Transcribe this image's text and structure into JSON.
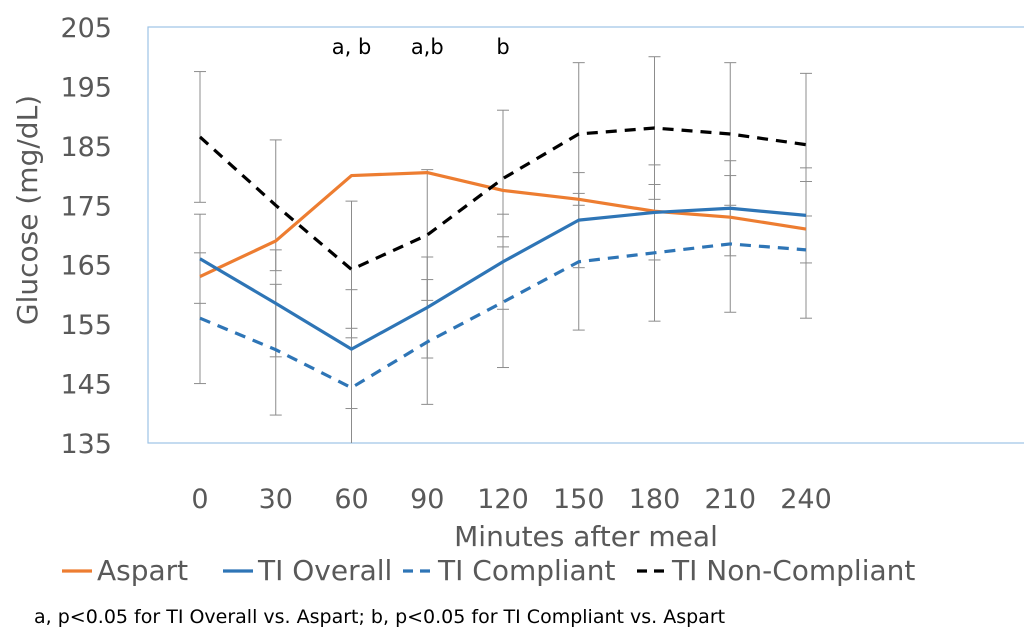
{
  "chart_data": {
    "type": "line",
    "xlabel": "Minutes after meal",
    "ylabel": "Glucose (mg/dL)",
    "x": [
      0,
      30,
      60,
      90,
      120,
      150,
      180,
      210,
      240
    ],
    "x_tick_labels": [
      "0",
      "30",
      "60",
      "90",
      "120",
      "150",
      "180",
      "210",
      "240"
    ],
    "ylim": [
      135,
      205
    ],
    "y_ticks": [
      135,
      145,
      155,
      165,
      175,
      185,
      195,
      205
    ],
    "y_tick_labels": [
      "135",
      "145",
      "155",
      "165",
      "175",
      "185",
      "195",
      "205"
    ],
    "grid": false,
    "legend_position": "bottom",
    "series": [
      {
        "name": "Aspart",
        "color": "#ED7D31",
        "dash": "solid",
        "values": [
          163,
          169,
          180,
          180.5,
          177.5,
          176,
          174,
          173,
          171
        ]
      },
      {
        "name": "TI Overall",
        "color": "#2E75B6",
        "dash": "solid",
        "values": [
          166,
          158.5,
          150.8,
          157.8,
          165.5,
          172.5,
          173.8,
          174.5,
          173.3
        ],
        "error": [
          7.5,
          9,
          10,
          8.5,
          8,
          8,
          8,
          8,
          8
        ]
      },
      {
        "name": "TI Compliant",
        "color": "#2E75B6",
        "dash": "dashed",
        "values": [
          156,
          150.7,
          144.3,
          152,
          158.7,
          165.5,
          167,
          168.5,
          167.5
        ],
        "error": [
          11,
          11,
          10,
          10.5,
          11,
          11.5,
          11.5,
          11.5,
          11.5
        ]
      },
      {
        "name": "TI Non-Compliant",
        "color": "#000000",
        "dash": "dashed",
        "values": [
          186.5,
          175,
          164.2,
          170,
          179.5,
          187,
          188,
          187,
          185.2
        ],
        "error": [
          11,
          11,
          11.5,
          11,
          11.5,
          12,
          12,
          12,
          12
        ]
      }
    ],
    "annotations": [
      {
        "x": 60,
        "text": "a, b"
      },
      {
        "x": 90,
        "text": "a,b"
      },
      {
        "x": 120,
        "text": "b"
      }
    ],
    "footnote": "a, p<0.05 for TI Overall vs. Aspart; b, p<0.05 for TI Compliant vs. Aspart"
  }
}
